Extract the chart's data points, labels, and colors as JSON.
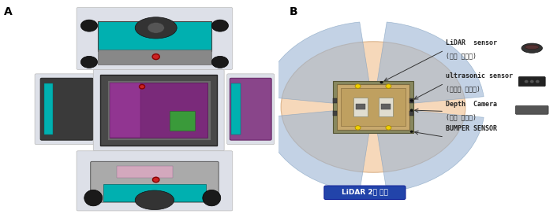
{
  "fig_width": 7.06,
  "fig_height": 2.72,
  "dpi": 100,
  "bg_color": "#ffffff",
  "label_A": "A",
  "label_B": "B",
  "lidar_label_line1": "LiDAR  sensor",
  "lidar_label_line2": "(자율 주행용)",
  "ultrasonic_label_line1": "ultrasonic sensor",
  "ultrasonic_label_line2": "(장애물 감지용)",
  "depth_label_line1": "Depth  Camera",
  "depth_label_line2": "(자율 주행용)",
  "bumper_label": "BUMPER SENSOR",
  "lidar_bottom_label": "LiDAR 2개 구성",
  "orange_fill": "#f2c495",
  "orange_alpha": 0.65,
  "blue_fill": "#9bb5d4",
  "blue_alpha": 0.6,
  "robot_platform_fill": "#c8a96e",
  "robot_frame_fill": "#c8b090",
  "robot_inner_fill": "#d0b88a",
  "robot_border": "#7a6a40",
  "lidar_box_fill": "#2244aa",
  "lidar_box_text": "#ffffff",
  "arrow_color": "#333333",
  "sensor_text_color": "#222222",
  "teal_color": "#00b0b0",
  "purple_color": "#7a2a7a",
  "dark_gray": "#404040",
  "medium_gray": "#808080",
  "light_gray_bg": "#e8e8e8",
  "yellow_sensor": "#f0d000",
  "photo_bg": "#dde0e8"
}
